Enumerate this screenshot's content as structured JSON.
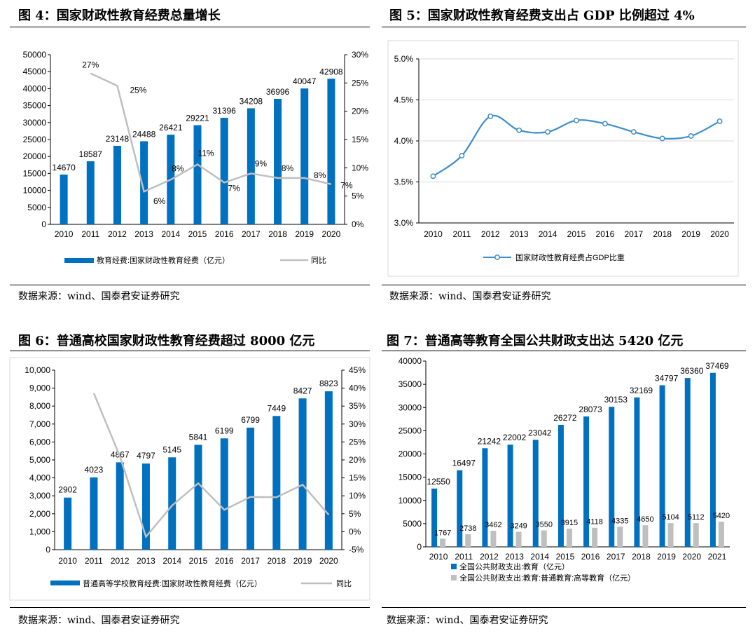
{
  "figures": [
    {
      "title": "图 4：国家财政性教育经费总量增长",
      "source": "数据来源：wind、国泰君安证券研究",
      "legend": [
        "教育经费:国家财政性教育经费（亿元）",
        "同比"
      ],
      "left_ticks": [
        "0",
        "5000",
        "10000",
        "15000",
        "20000",
        "25000",
        "30000",
        "35000",
        "40000",
        "45000",
        "50000"
      ],
      "right_ticks": [
        "0%",
        "5%",
        "10%",
        "15%",
        "20%",
        "25%",
        "30%"
      ]
    },
    {
      "title": "图 5：国家财政性教育经费支出占 GDP 比例超过 4%",
      "source": "数据来源：wind、国泰君安证券研究",
      "legend": [
        "国家财政性教育经费占GDP比重"
      ],
      "left_ticks": [
        "3.0%",
        "3.5%",
        "4.0%",
        "4.5%",
        "5.0%"
      ]
    },
    {
      "title": "图 6：普通高校国家财政性教育经费超过 8000 亿元",
      "source": "数据来源：wind、国泰君安证券研究",
      "legend": [
        "普通高等学校教育经费:国家财政性教育经费（亿元）",
        "同比"
      ],
      "left_ticks": [
        "0",
        "1,000",
        "2,000",
        "3,000",
        "4,000",
        "5,000",
        "6,000",
        "7,000",
        "8,000",
        "9,000",
        "10,000"
      ],
      "right_ticks": [
        "-5%",
        "0%",
        "5%",
        "10%",
        "15%",
        "20%",
        "25%",
        "30%",
        "35%",
        "40%",
        "45%"
      ]
    },
    {
      "title": "图 7：普通高等教育全国公共财政支出达 5420 亿元",
      "source": "数据来源：wind、国泰君安证券研究",
      "legend": [
        "全国公共财政支出:教育（亿元）",
        "全国公共财政支出:教育:普通教育:高等教育（亿元）"
      ],
      "left_ticks": [
        "0",
        "5000",
        "10000",
        "15000",
        "20000",
        "25000",
        "30000",
        "35000",
        "40000"
      ]
    }
  ],
  "colors": {
    "bar_blue": "#0070C0",
    "line_blue": "#3E8EC9",
    "line_gray": "#BFBFBF",
    "bar_gray": "#BFBFBF"
  },
  "chart_data": [
    {
      "type": "bar",
      "categories": [
        "2010",
        "2011",
        "2012",
        "2013",
        "2014",
        "2015",
        "2016",
        "2017",
        "2018",
        "2019",
        "2020"
      ],
      "series": [
        {
          "name": "教育经费:国家财政性教育经费（亿元）",
          "values": [
            14670,
            18587,
            23148,
            24488,
            26421,
            29221,
            31396,
            34208,
            36996,
            40047,
            42908
          ],
          "axis": "left"
        },
        {
          "name": "同比",
          "type": "line",
          "values": [
            null,
            26.7,
            24.5,
            5.8,
            7.9,
            10.6,
            7.4,
            9.0,
            8.2,
            8.2,
            7.1
          ],
          "axis": "right"
        }
      ],
      "bar_labels": [
        "14670",
        "18587",
        "23148",
        "24488",
        "26421",
        "29221",
        "31396",
        "34208",
        "36996",
        "40047",
        "42908"
      ],
      "line_labels": [
        "",
        "27%",
        "25%",
        "6%",
        "8%",
        "11%",
        "7%",
        "9%",
        "8%",
        "8%",
        "7%"
      ],
      "ylim": [
        0,
        50000
      ],
      "y2lim": [
        0,
        30
      ],
      "legend_position": "bottom"
    },
    {
      "type": "line",
      "categories": [
        "2010",
        "2011",
        "2012",
        "2013",
        "2014",
        "2015",
        "2016",
        "2017",
        "2018",
        "2019",
        "2020"
      ],
      "series": [
        {
          "name": "国家财政性教育经费占GDP比重",
          "values": [
            3.57,
            3.82,
            4.3,
            4.13,
            4.11,
            4.25,
            4.21,
            4.11,
            4.03,
            4.06,
            4.24
          ]
        }
      ],
      "ylim": [
        3.0,
        5.0
      ],
      "legend_position": "bottom"
    },
    {
      "type": "bar",
      "categories": [
        "2010",
        "2011",
        "2012",
        "2013",
        "2014",
        "2015",
        "2016",
        "2017",
        "2018",
        "2019",
        "2020"
      ],
      "series": [
        {
          "name": "普通高等学校教育经费:国家财政性教育经费（亿元）",
          "values": [
            2902,
            4023,
            4867,
            4797,
            5145,
            5841,
            6199,
            6799,
            7449,
            8427,
            8823
          ],
          "axis": "left"
        },
        {
          "name": "同比",
          "type": "line",
          "values": [
            null,
            38.6,
            21.0,
            -1.4,
            7.3,
            13.5,
            6.1,
            9.7,
            9.6,
            13.1,
            4.7
          ],
          "axis": "right"
        }
      ],
      "bar_labels": [
        "2902",
        "4023",
        "4867",
        "4797",
        "5145",
        "5841",
        "6199",
        "6799",
        "7449",
        "8427",
        "8823"
      ],
      "ylim": [
        0,
        10000
      ],
      "y2lim": [
        -5,
        45
      ],
      "legend_position": "bottom"
    },
    {
      "type": "bar",
      "categories": [
        "2010",
        "2011",
        "2012",
        "2013",
        "2014",
        "2015",
        "2016",
        "2017",
        "2018",
        "2019",
        "2020",
        "2021"
      ],
      "series": [
        {
          "name": "全国公共财政支出:教育（亿元）",
          "values": [
            12550,
            16497,
            21242,
            22002,
            23042,
            26272,
            28073,
            30153,
            32169,
            34797,
            36360,
            37469
          ]
        },
        {
          "name": "全国公共财政支出:教育:普通教育:高等教育（亿元）",
          "values": [
            1767,
            2738,
            3462,
            3249,
            3550,
            3915,
            4118,
            4335,
            4650,
            5104,
            5112,
            5420
          ]
        }
      ],
      "labels_1": [
        "12550",
        "16497",
        "21242",
        "22002",
        "23042",
        "26272",
        "28073",
        "30153",
        "32169",
        "34797",
        "36360",
        "37469"
      ],
      "labels_2": [
        "1767",
        "2738",
        "3462",
        "3249",
        "3550",
        "3915",
        "4118",
        "4335",
        "4650",
        "5104",
        "5112",
        "5420"
      ],
      "ylim": [
        0,
        40000
      ],
      "legend_position": "bottom"
    }
  ]
}
